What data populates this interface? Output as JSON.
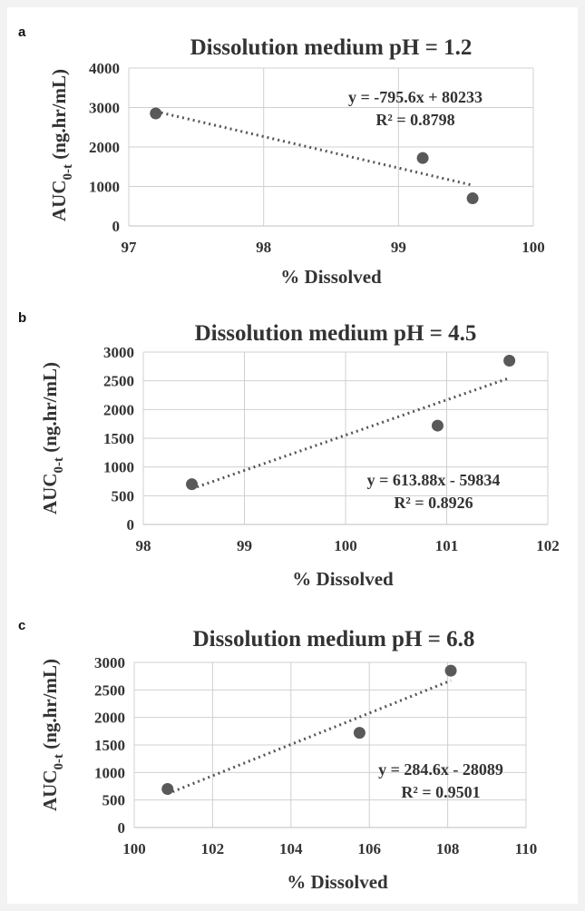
{
  "chart_data": [
    {
      "type": "scatter",
      "panel_label": "a",
      "title": "Dissolution medium pH = 1.2",
      "xlabel": "% Dissolved",
      "ylabel": "AUC0-t (ng.hr/mL)",
      "ylabel_main": "AUC",
      "ylabel_sub": "0-t",
      "ylabel_tail": " (ng.hr/mL)",
      "xlim": [
        97,
        100
      ],
      "ylim": [
        0,
        4000
      ],
      "xticks": [
        97,
        98,
        99,
        100
      ],
      "yticks": [
        0,
        1000,
        2000,
        3000,
        4000
      ],
      "grid": true,
      "points": [
        {
          "x": 97.2,
          "y": 2850
        },
        {
          "x": 99.18,
          "y": 1720
        },
        {
          "x": 99.55,
          "y": 700
        }
      ],
      "trendline": {
        "slope": -795.6,
        "intercept": 80233
      },
      "equation": "y = -795.6x + 80233",
      "r2": "R² = 0.8798"
    },
    {
      "type": "scatter",
      "panel_label": "b",
      "title": "Dissolution medium pH = 4.5",
      "xlabel": "% Dissolved",
      "ylabel": "AUC0-t (ng.hr/mL)",
      "ylabel_main": "AUC",
      "ylabel_sub": "0-t",
      "ylabel_tail": " (ng.hr/mL)",
      "xlim": [
        98,
        102
      ],
      "ylim": [
        0,
        3000
      ],
      "xticks": [
        98,
        99,
        100,
        101,
        102
      ],
      "yticks": [
        0,
        500,
        1000,
        1500,
        2000,
        2500,
        3000
      ],
      "grid": true,
      "points": [
        {
          "x": 98.48,
          "y": 700
        },
        {
          "x": 100.91,
          "y": 1720
        },
        {
          "x": 101.62,
          "y": 2850
        }
      ],
      "trendline": {
        "slope": 613.88,
        "intercept": -59834
      },
      "equation": "y = 613.88x - 59834",
      "r2": "R² = 0.8926"
    },
    {
      "type": "scatter",
      "panel_label": "c",
      "title": "Dissolution medium pH = 6.8",
      "xlabel": "% Dissolved",
      "ylabel": "AUC0-t (ng.hr/mL)",
      "ylabel_main": "AUC",
      "ylabel_sub": "0-t",
      "ylabel_tail": " (ng.hr/mL)",
      "xlim": [
        100,
        110
      ],
      "ylim": [
        0,
        3000
      ],
      "xticks": [
        100,
        102,
        104,
        106,
        108,
        110
      ],
      "yticks": [
        0,
        500,
        1000,
        1500,
        2000,
        2500,
        3000
      ],
      "grid": true,
      "points": [
        {
          "x": 100.85,
          "y": 700
        },
        {
          "x": 105.75,
          "y": 1720
        },
        {
          "x": 108.08,
          "y": 2850
        }
      ],
      "trendline": {
        "slope": 284.6,
        "intercept": -28089
      },
      "equation": "y = 284.6x - 28089",
      "r2": "R² = 0.9501"
    }
  ]
}
